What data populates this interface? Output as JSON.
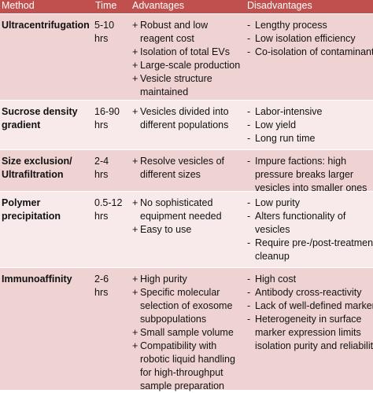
{
  "header": {
    "method": "Method",
    "time": "Time",
    "advantages": "Advantages",
    "disadvantages": "Disadvantages"
  },
  "rows": [
    {
      "method": [
        "Ultracentrifugation"
      ],
      "time": [
        "5-10",
        "hrs"
      ],
      "advantages": [
        [
          "Robust and low",
          "reagent cost"
        ],
        [
          "Isolation of total EVs"
        ],
        [
          "Large-scale production"
        ],
        [
          "Vesicle structure",
          "maintained"
        ]
      ],
      "disadvantages": [
        [
          "Lengthy process"
        ],
        [
          "Low isolation efficiency"
        ],
        [
          "Co-isolation of contaminants"
        ]
      ]
    },
    {
      "method": [
        "Sucrose density",
        "gradient"
      ],
      "time": [
        "16-90",
        "hrs"
      ],
      "advantages": [
        [
          "Vesicles divided into",
          "different populations"
        ]
      ],
      "disadvantages": [
        [
          "Labor-intensive"
        ],
        [
          "Low yield"
        ],
        [
          "Long run time"
        ]
      ]
    },
    {
      "method": [
        "Size exclusion/",
        "Ultrafiltration"
      ],
      "time": [
        "2-4",
        "hrs"
      ],
      "advantages": [
        [
          "Resolve vesicles of",
          "different sizes"
        ]
      ],
      "disadvantages": [
        [
          "Impure factions: high",
          "pressure breaks larger",
          "vesicles into smaller ones"
        ]
      ]
    },
    {
      "method": [
        "Polymer",
        "precipitation"
      ],
      "time": [
        "0.5-12",
        "hrs"
      ],
      "advantages": [
        [
          "No sophisticated",
          "equipment needed"
        ],
        [
          "Easy to use"
        ]
      ],
      "disadvantages": [
        [
          "Low purity"
        ],
        [
          "Alters functionality of",
          "vesicles"
        ],
        [
          "Require pre-/post-treatment",
          "cleanup"
        ]
      ]
    },
    {
      "method": [
        "Immunoaffinity"
      ],
      "time": [
        "2-6",
        "hrs"
      ],
      "advantages": [
        [
          "High purity"
        ],
        [
          "Specific molecular",
          "selection of exosome",
          "subpopulations"
        ],
        [
          "Small sample volume"
        ],
        [
          "Compatibility with",
          "robotic liquid handling",
          "for high-throughput",
          "sample preparation"
        ]
      ],
      "disadvantages": [
        [
          "High cost"
        ],
        [
          "Antibody cross-reactivity"
        ],
        [
          "Lack of well-defined markers"
        ],
        [
          "Heterogeneity in surface",
          "marker expression limits",
          "isolation purity and reliability"
        ]
      ]
    }
  ],
  "symbols": {
    "advantage_bullet": "+",
    "disadvantage_bullet": "-"
  },
  "colors": {
    "header_bg": "#c0504d",
    "row_shaded": "#efd3d2",
    "row_plain": "#f8eaea"
  }
}
